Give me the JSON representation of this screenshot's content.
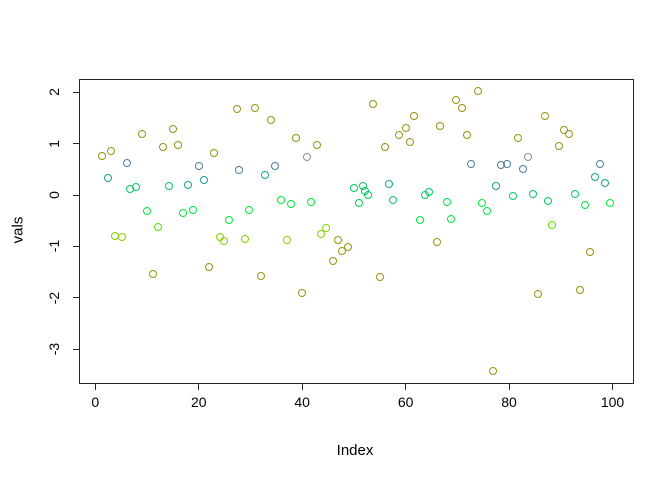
{
  "figure": {
    "background": "#ffffff",
    "box_color": "#262626",
    "text_color": "#000000"
  },
  "palette": {
    "olive": "#969310",
    "gray": "#8e8e86",
    "steelblue": "#4b7b9c",
    "teal": "#18a188",
    "green": "#00cb60",
    "brightgreen": "#00ec38",
    "chartreuse": "#80d500",
    "chartreuse2": "#52e400"
  },
  "chart_data": {
    "type": "scatter",
    "title": "",
    "xlabel": "Index",
    "ylabel": "vals",
    "x_ticks": [
      0,
      20,
      40,
      60,
      80,
      100
    ],
    "y_ticks": [
      2,
      1,
      0,
      -1,
      -2,
      -3
    ],
    "xlim": [
      -2.96,
      103.96
    ],
    "ylim": [
      -3.66,
      2.24
    ],
    "grid": false,
    "legend": "none",
    "marker": "open-circle",
    "points": [
      [
        1.3,
        0.76,
        "olive"
      ],
      [
        2.5,
        0.33,
        "teal"
      ],
      [
        3.1,
        0.84,
        "olive"
      ],
      [
        4.0,
        -0.8,
        "chartreuse"
      ],
      [
        5.2,
        -0.82,
        "chartreuse"
      ],
      [
        6.2,
        0.62,
        "steelblue"
      ],
      [
        6.9,
        0.1,
        "green"
      ],
      [
        7.9,
        0.14,
        "green"
      ],
      [
        9.1,
        1.18,
        "olive"
      ],
      [
        10.0,
        -0.33,
        "brightgreen"
      ],
      [
        11.2,
        -1.55,
        "olive"
      ],
      [
        12.2,
        -0.64,
        "chartreuse2"
      ],
      [
        13.1,
        0.93,
        "olive"
      ],
      [
        14.3,
        0.16,
        "green"
      ],
      [
        15.2,
        1.28,
        "olive"
      ],
      [
        16.0,
        0.97,
        "olive"
      ],
      [
        17.1,
        -0.35,
        "brightgreen"
      ],
      [
        18.1,
        0.19,
        "teal"
      ],
      [
        18.9,
        -0.31,
        "brightgreen"
      ],
      [
        20.2,
        0.56,
        "steelblue"
      ],
      [
        21.2,
        0.29,
        "teal"
      ],
      [
        22.0,
        -1.41,
        "olive"
      ],
      [
        23.1,
        0.8,
        "olive"
      ],
      [
        24.3,
        -0.82,
        "chartreuse"
      ],
      [
        25.0,
        -0.9,
        "chartreuse"
      ],
      [
        25.9,
        -0.49,
        "brightgreen"
      ],
      [
        27.4,
        1.67,
        "olive"
      ],
      [
        27.9,
        0.47,
        "steelblue"
      ],
      [
        29.1,
        -0.87,
        "chartreuse"
      ],
      [
        29.9,
        -0.31,
        "brightgreen"
      ],
      [
        31.0,
        1.69,
        "olive"
      ],
      [
        32.1,
        -1.59,
        "olive"
      ],
      [
        32.9,
        0.39,
        "teal"
      ],
      [
        34.1,
        1.46,
        "olive"
      ],
      [
        34.9,
        0.56,
        "steelblue"
      ],
      [
        36.0,
        -0.1,
        "brightgreen"
      ],
      [
        37.2,
        -0.89,
        "chartreuse"
      ],
      [
        38.0,
        -0.19,
        "brightgreen"
      ],
      [
        38.9,
        1.11,
        "olive"
      ],
      [
        40.1,
        -1.92,
        "olive"
      ],
      [
        41.0,
        0.74,
        "gray"
      ],
      [
        41.8,
        -0.14,
        "brightgreen"
      ],
      [
        42.9,
        0.97,
        "olive"
      ],
      [
        43.7,
        -0.76,
        "chartreuse"
      ],
      [
        44.7,
        -0.66,
        "chartreuse"
      ],
      [
        46.0,
        -1.3,
        "olive"
      ],
      [
        47.0,
        -0.89,
        "olive"
      ],
      [
        47.8,
        -1.09,
        "olive"
      ],
      [
        48.9,
        -1.03,
        "olive"
      ],
      [
        50.1,
        0.12,
        "green"
      ],
      [
        51.1,
        -0.16,
        "green"
      ],
      [
        51.8,
        0.16,
        "green"
      ],
      [
        52.2,
        0.06,
        "green"
      ],
      [
        52.8,
        0.0,
        "green"
      ],
      [
        53.8,
        1.77,
        "olive"
      ],
      [
        55.1,
        -1.61,
        "olive"
      ],
      [
        56.1,
        0.93,
        "olive"
      ],
      [
        56.8,
        0.21,
        "teal"
      ],
      [
        57.6,
        -0.1,
        "green"
      ],
      [
        58.8,
        1.15,
        "olive"
      ],
      [
        60.1,
        1.3,
        "olive"
      ],
      [
        60.9,
        1.03,
        "olive"
      ],
      [
        61.8,
        1.53,
        "olive"
      ],
      [
        62.8,
        -0.49,
        "brightgreen"
      ],
      [
        63.8,
        0.0,
        "green"
      ],
      [
        64.7,
        0.04,
        "green"
      ],
      [
        66.1,
        -0.93,
        "olive"
      ],
      [
        66.8,
        1.34,
        "olive"
      ],
      [
        68.0,
        -0.14,
        "brightgreen"
      ],
      [
        68.8,
        -0.47,
        "brightgreen"
      ],
      [
        69.9,
        1.84,
        "olive"
      ],
      [
        70.9,
        1.69,
        "olive"
      ],
      [
        72.0,
        1.15,
        "olive"
      ],
      [
        72.8,
        0.6,
        "steelblue"
      ],
      [
        74.0,
        2.02,
        "olive"
      ],
      [
        74.9,
        -0.16,
        "brightgreen"
      ],
      [
        75.9,
        -0.33,
        "brightgreen"
      ],
      [
        76.9,
        -3.44,
        "olive"
      ],
      [
        77.6,
        0.17,
        "teal"
      ],
      [
        78.6,
        0.58,
        "steelblue"
      ],
      [
        79.6,
        0.6,
        "steelblue"
      ],
      [
        80.9,
        -0.02,
        "green"
      ],
      [
        81.9,
        1.11,
        "olive"
      ],
      [
        82.7,
        0.5,
        "steelblue"
      ],
      [
        83.8,
        0.74,
        "gray"
      ],
      [
        84.8,
        0.02,
        "green"
      ],
      [
        85.7,
        -1.94,
        "olive"
      ],
      [
        87.1,
        1.53,
        "olive"
      ],
      [
        87.7,
        -0.12,
        "green"
      ],
      [
        88.4,
        -0.6,
        "chartreuse2"
      ],
      [
        89.8,
        0.95,
        "olive"
      ],
      [
        90.8,
        1.26,
        "olive"
      ],
      [
        91.7,
        1.18,
        "olive"
      ],
      [
        92.8,
        0.02,
        "green"
      ],
      [
        93.8,
        -1.86,
        "olive"
      ],
      [
        94.7,
        -0.21,
        "brightgreen"
      ],
      [
        95.8,
        -1.11,
        "olive"
      ],
      [
        96.7,
        0.35,
        "teal"
      ],
      [
        97.7,
        0.6,
        "steelblue"
      ],
      [
        98.6,
        0.23,
        "teal"
      ],
      [
        99.7,
        -0.17,
        "brightgreen"
      ]
    ]
  }
}
